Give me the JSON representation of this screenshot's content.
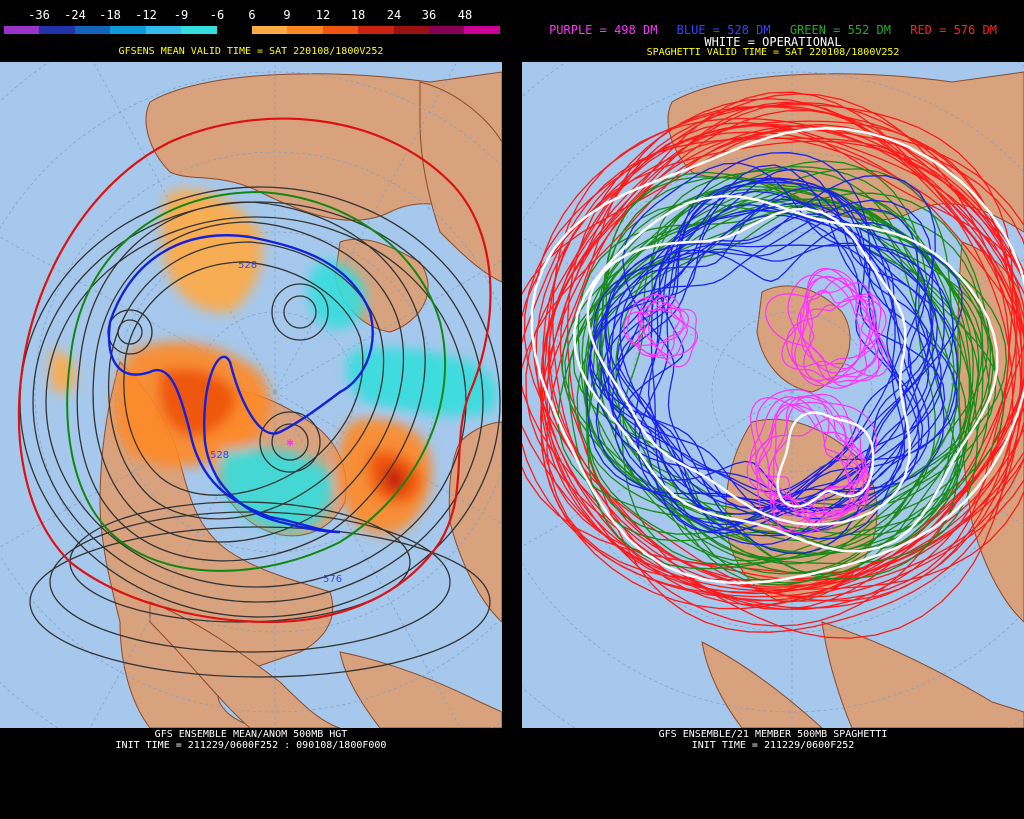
{
  "left_panel": {
    "legend": {
      "labels": [
        "-36",
        "-24",
        "-18",
        "-12",
        "-9",
        "-6",
        "6",
        "9",
        "12",
        "18",
        "24",
        "36",
        "48"
      ],
      "colors": [
        "#9933cc",
        "#2233aa",
        "#1166bb",
        "#1199dd",
        "#33bbee",
        "#33dddd",
        "#000000",
        "#ffaa44",
        "#ff8822",
        "#ee5511",
        "#cc2211",
        "#991111",
        "#880055",
        "#cc0099"
      ]
    },
    "valid_time_title": "GFSENS MEAN VALID TIME = SAT 220108/1800V252",
    "contour_labels": [
      "528",
      "528",
      "576"
    ],
    "caption_line1": "GFS ENSEMBLE MEAN/ANOM 500MB HGT",
    "caption_line2": "INIT TIME = 211229/0600F252 : 090108/1800F000"
  },
  "right_panel": {
    "legend_line1": [
      {
        "text": "PURPLE = 498 DM",
        "color": "#ff33ff"
      },
      {
        "text": "BLUE = 528 DM",
        "color": "#3344ff"
      },
      {
        "text": "GREEN = 552 DM",
        "color": "#22aa22"
      },
      {
        "text": "RED = 576 DM",
        "color": "#ff2222"
      }
    ],
    "legend_line2": {
      "text": "WHITE = OPERATIONAL",
      "color": "#ffffff"
    },
    "valid_time_title": "SPAGHETTI VALID TIME = SAT 220108/1800V252",
    "caption_line1": "GFS ENSEMBLE/21 MEMBER 500MB SPAGHETTI",
    "caption_line2": "INIT TIME = 211229/0600F252"
  },
  "colors": {
    "ocean": "#a6c8ec",
    "land": "#d9a27e",
    "border": "#8b4a2a"
  }
}
